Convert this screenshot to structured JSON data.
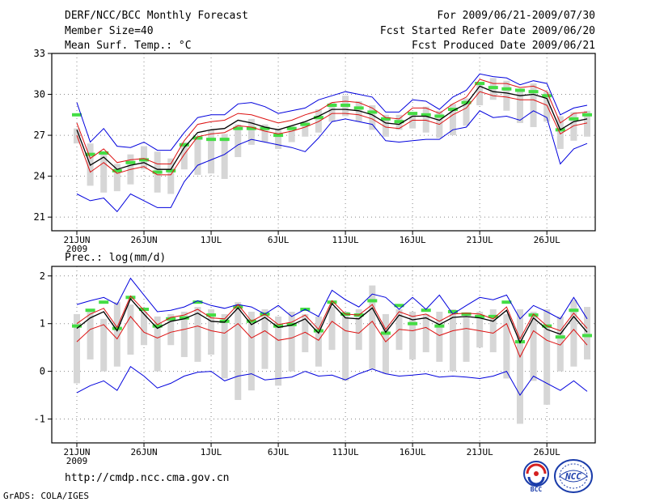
{
  "header": {
    "title": "DERF/NCC/BCC Monthly Forecast",
    "member_size": "Member Size=40",
    "variable_1": "Mean Surf. Temp.: °C",
    "period": "For 2009/06/21-2009/07/30",
    "fcst_started": "Fcst Started Refer Date 2009/06/20",
    "fcst_produced": "Fcst Produced Date 2009/06/21"
  },
  "footer": {
    "url": "http://cmdp.ncc.cma.gov.cn",
    "credit": "GrADS: COLA/IGES",
    "logo_bcc": "BCC",
    "logo_ncc": "NCC"
  },
  "colors": {
    "max_min": "#0000dd",
    "spread": "#dd1111",
    "mean": "#000000",
    "observed": "#44dd44",
    "member_bar": "#d6d6d6",
    "frame": "#000000",
    "grid": "#888888"
  },
  "chart_data": [
    {
      "type": "line",
      "title": "Mean Surf. Temp.: °C",
      "x_tick_labels": [
        "21JUN",
        "26JUN",
        "1JUL",
        "6JUL",
        "11JUL",
        "16JUL",
        "21JUL",
        "26JUL"
      ],
      "x_tick_days": [
        0,
        5,
        10,
        15,
        20,
        25,
        30,
        35
      ],
      "x_year_label": "2009",
      "days": 39,
      "ylim": [
        20,
        33
      ],
      "y_ticks": [
        21,
        24,
        27,
        30,
        33
      ],
      "series": [
        {
          "name": "max",
          "values": [
            29.4,
            26.5,
            27.5,
            26.2,
            26.1,
            26.5,
            25.9,
            25.9,
            27.2,
            28.3,
            28.5,
            28.5,
            29.3,
            29.4,
            29.1,
            28.6,
            28.8,
            29.0,
            29.6,
            29.9,
            30.2,
            30.0,
            29.8,
            28.7,
            28.7,
            29.6,
            29.5,
            28.9,
            29.8,
            30.3,
            31.5,
            31.3,
            31.2,
            30.7,
            31.0,
            30.8,
            28.5,
            29.0,
            29.2
          ]
        },
        {
          "name": "spread_upper",
          "values": [
            27.9,
            25.3,
            26.0,
            25.0,
            25.2,
            25.3,
            24.9,
            24.9,
            26.6,
            27.8,
            28.0,
            28.1,
            28.6,
            28.5,
            28.2,
            27.9,
            28.1,
            28.5,
            28.8,
            29.4,
            29.5,
            29.4,
            29.0,
            28.3,
            28.2,
            29.0,
            29.0,
            28.6,
            29.3,
            29.8,
            31.1,
            30.8,
            30.8,
            30.5,
            30.6,
            30.2,
            27.9,
            28.6,
            28.7
          ]
        },
        {
          "name": "mean",
          "values": [
            27.4,
            24.8,
            25.4,
            24.5,
            24.8,
            25.0,
            24.5,
            24.5,
            26.1,
            27.2,
            27.4,
            27.5,
            28.1,
            27.9,
            27.6,
            27.4,
            27.7,
            28.0,
            28.4,
            28.9,
            28.9,
            28.8,
            28.5,
            27.9,
            27.8,
            28.4,
            28.4,
            28.1,
            28.8,
            29.3,
            30.6,
            30.2,
            30.1,
            29.9,
            30.0,
            29.7,
            27.4,
            28.0,
            28.2
          ]
        },
        {
          "name": "spread_lower",
          "values": [
            27.0,
            24.3,
            25.0,
            24.2,
            24.5,
            24.7,
            24.1,
            24.1,
            25.6,
            26.9,
            27.1,
            27.2,
            27.7,
            27.6,
            27.3,
            27.1,
            27.3,
            27.6,
            28.0,
            28.6,
            28.6,
            28.5,
            28.2,
            27.6,
            27.5,
            28.1,
            28.1,
            27.8,
            28.5,
            29.0,
            30.2,
            29.9,
            29.8,
            29.6,
            29.6,
            29.2,
            27.1,
            27.7,
            27.9
          ]
        },
        {
          "name": "min",
          "values": [
            22.7,
            22.2,
            22.4,
            21.4,
            22.7,
            22.2,
            21.7,
            21.7,
            23.6,
            24.8,
            25.2,
            25.6,
            26.3,
            26.7,
            26.5,
            26.3,
            26.1,
            25.8,
            26.8,
            28.0,
            28.2,
            28.0,
            27.8,
            26.6,
            26.5,
            26.6,
            26.7,
            26.7,
            27.4,
            27.6,
            28.8,
            28.3,
            28.4,
            28.1,
            28.8,
            28.3,
            24.9,
            26.0,
            26.4
          ]
        },
        {
          "name": "observed",
          "values": [
            28.5,
            25.6,
            25.7,
            24.4,
            25.0,
            25.2,
            24.3,
            24.4,
            26.3,
            26.8,
            26.7,
            26.7,
            27.5,
            27.5,
            27.5,
            27.0,
            27.5,
            27.8,
            28.3,
            29.2,
            29.2,
            29.0,
            28.7,
            28.2,
            28.0,
            28.6,
            28.5,
            28.4,
            28.9,
            29.4,
            30.8,
            30.5,
            30.4,
            30.3,
            30.2,
            29.9,
            27.4,
            28.2,
            28.5
          ]
        },
        {
          "name": "member_bar_top",
          "values": [
            27.5,
            26.4,
            25.8,
            24.9,
            25.6,
            26.2,
            25.8,
            25.3,
            26.5,
            26.9,
            27.4,
            27.1,
            27.8,
            28.2,
            27.8,
            27.5,
            27.7,
            28.0,
            28.9,
            29.4,
            29.9,
            29.5,
            29.2,
            28.5,
            28.5,
            28.7,
            29.1,
            28.8,
            29.3,
            29.7,
            30.7,
            31.2,
            31.0,
            30.4,
            30.8,
            30.2,
            28.4,
            28.7,
            28.8
          ]
        },
        {
          "name": "member_bar_bottom",
          "values": [
            26.4,
            23.3,
            22.8,
            22.9,
            23.4,
            24.5,
            22.8,
            22.7,
            24.5,
            24.1,
            24.2,
            23.8,
            25.4,
            26.3,
            26.5,
            26.0,
            26.5,
            26.9,
            27.2,
            28.0,
            28.4,
            28.0,
            27.4,
            26.9,
            27.4,
            27.5,
            27.2,
            26.8,
            27.0,
            27.7,
            29.2,
            29.6,
            28.8,
            27.9,
            27.6,
            28.0,
            26.0,
            26.6,
            26.9
          ]
        }
      ]
    },
    {
      "type": "line",
      "title": "Prec.: log(mm/d)",
      "x_tick_labels": [
        "21JUN",
        "26JUN",
        "1JUL",
        "6JUL",
        "11JUL",
        "16JUL",
        "21JUL",
        "26JUL"
      ],
      "x_tick_days": [
        0,
        5,
        10,
        15,
        20,
        25,
        30,
        35
      ],
      "x_year_label": "2009",
      "days": 39,
      "ylim": [
        -1.5,
        2.2
      ],
      "y_ticks": [
        -1,
        0,
        1,
        2
      ],
      "series": [
        {
          "name": "max",
          "values": [
            1.4,
            1.48,
            1.55,
            1.4,
            1.95,
            1.6,
            1.25,
            1.28,
            1.35,
            1.48,
            1.38,
            1.32,
            1.4,
            1.35,
            1.2,
            1.38,
            1.15,
            1.3,
            1.15,
            1.7,
            1.5,
            1.35,
            1.62,
            1.55,
            1.3,
            1.55,
            1.3,
            1.6,
            1.2,
            1.38,
            1.55,
            1.5,
            1.6,
            1.1,
            1.38,
            1.25,
            1.1,
            1.55,
            1.1
          ]
        },
        {
          "name": "spread_upper",
          "values": [
            1.0,
            1.2,
            1.32,
            0.92,
            1.58,
            1.28,
            0.98,
            1.13,
            1.18,
            1.3,
            1.12,
            1.1,
            1.4,
            1.05,
            1.2,
            0.98,
            1.03,
            1.18,
            0.88,
            1.48,
            1.2,
            1.18,
            1.4,
            0.88,
            1.25,
            1.15,
            1.2,
            1.05,
            1.2,
            1.22,
            1.2,
            1.1,
            1.35,
            0.68,
            1.2,
            0.95,
            0.85,
            1.22,
            0.9
          ]
        },
        {
          "name": "mean",
          "values": [
            0.9,
            1.12,
            1.25,
            0.85,
            1.52,
            1.2,
            0.9,
            1.05,
            1.1,
            1.22,
            1.05,
            1.03,
            1.33,
            0.98,
            1.13,
            0.92,
            0.97,
            1.1,
            0.8,
            1.42,
            1.12,
            1.1,
            1.33,
            0.82,
            1.18,
            1.08,
            1.12,
            0.98,
            1.13,
            1.15,
            1.12,
            1.05,
            1.28,
            0.6,
            1.12,
            0.88,
            0.78,
            1.15,
            0.82
          ]
        },
        {
          "name": "spread_lower",
          "values": [
            0.62,
            0.88,
            0.98,
            0.68,
            1.15,
            0.82,
            0.7,
            0.82,
            0.88,
            0.95,
            0.85,
            0.8,
            1.0,
            0.7,
            0.85,
            0.65,
            0.7,
            0.82,
            0.65,
            1.05,
            0.85,
            0.8,
            1.05,
            0.62,
            0.88,
            0.85,
            0.92,
            0.75,
            0.85,
            0.9,
            0.85,
            0.8,
            1.0,
            0.3,
            0.85,
            0.65,
            0.55,
            0.88,
            0.55
          ]
        },
        {
          "name": "min",
          "values": [
            -0.45,
            -0.3,
            -0.2,
            -0.4,
            0.1,
            -0.1,
            -0.35,
            -0.25,
            -0.1,
            -0.02,
            0.0,
            -0.2,
            -0.1,
            -0.05,
            -0.18,
            -0.15,
            -0.12,
            0.0,
            -0.1,
            -0.08,
            -0.18,
            -0.05,
            0.05,
            -0.05,
            -0.1,
            -0.08,
            -0.05,
            -0.12,
            -0.1,
            -0.12,
            -0.15,
            -0.1,
            0.0,
            -0.5,
            -0.1,
            -0.25,
            -0.4,
            -0.2,
            -0.42
          ]
        },
        {
          "name": "observed",
          "values": [
            0.95,
            1.28,
            1.45,
            0.9,
            1.55,
            1.3,
            0.95,
            1.1,
            1.12,
            1.45,
            1.18,
            1.05,
            1.35,
            1.05,
            1.2,
            0.95,
            0.98,
            1.3,
            0.85,
            1.45,
            1.2,
            1.18,
            1.48,
            0.8,
            1.38,
            1.0,
            1.28,
            0.95,
            1.25,
            1.2,
            1.15,
            1.15,
            1.45,
            0.62,
            1.18,
            0.95,
            0.72,
            1.28,
            0.75
          ]
        },
        {
          "name": "member_bar_top",
          "values": [
            1.2,
            1.3,
            1.1,
            1.45,
            1.4,
            1.25,
            1.15,
            1.2,
            1.25,
            1.35,
            1.3,
            1.2,
            1.45,
            1.25,
            1.3,
            1.15,
            1.25,
            1.2,
            1.15,
            1.35,
            1.25,
            1.3,
            1.8,
            1.2,
            1.3,
            1.25,
            1.2,
            1.25,
            1.3,
            1.15,
            1.25,
            1.3,
            1.2,
            1.3,
            1.25,
            1.3,
            1.15,
            1.5,
            1.35
          ]
        },
        {
          "name": "member_bar_bottom",
          "values": [
            -0.25,
            0.25,
            0.0,
            0.1,
            0.35,
            0.55,
            0.0,
            0.55,
            0.3,
            0.2,
            0.35,
            -0.15,
            -0.6,
            -0.4,
            0.05,
            -0.3,
            0.0,
            0.4,
            0.1,
            0.45,
            -0.2,
            0.45,
            0.05,
            -0.05,
            0.45,
            0.25,
            0.4,
            0.2,
            0.0,
            0.2,
            0.5,
            0.4,
            -0.15,
            -1.1,
            -0.2,
            -0.7,
            0.0,
            0.1,
            0.25
          ]
        }
      ]
    }
  ]
}
